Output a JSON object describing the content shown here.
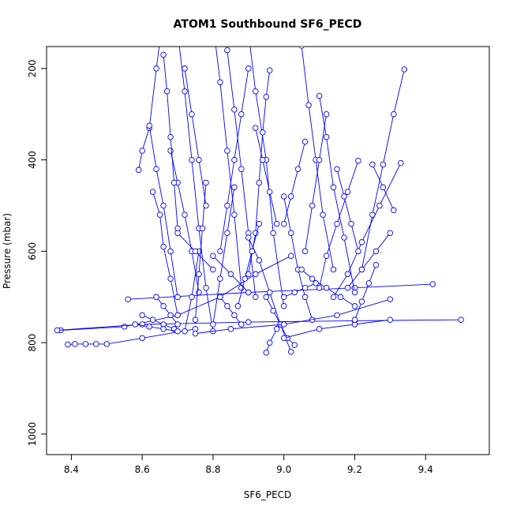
{
  "chart_data": {
    "type": "line",
    "title": "ATOM1 Southbound SF6_PECD",
    "xlabel": "SF6_PECD",
    "ylabel": "Pressure (mbar)",
    "xlim": [
      8.33,
      9.58
    ],
    "ylim": [
      1045,
      152
    ],
    "y_reversed": true,
    "grid": false,
    "legend": "none",
    "series_color": "#0000ff",
    "marker": "open-circle",
    "x_ticks": [
      8.4,
      8.6,
      8.8,
      9.0,
      9.2,
      9.4
    ],
    "x_tick_labels": [
      "8.4",
      "8.6",
      "8.8",
      "9.0",
      "9.2",
      "9.4"
    ],
    "y_ticks": [
      200,
      400,
      600,
      800,
      1000
    ],
    "y_tick_labels": [
      "200",
      "400",
      "600",
      "800",
      "1000"
    ],
    "series": [
      {
        "x": [
          8.66,
          8.64,
          8.62,
          8.6,
          8.59
        ],
        "y": [
          80,
          200,
          330,
          380,
          422
        ]
      },
      {
        "x": [
          8.37,
          8.55,
          8.7,
          8.82,
          8.92,
          9.02
        ],
        "y": [
          773,
          765,
          740,
          700,
          650,
          610
        ]
      },
      {
        "x": [
          8.39,
          8.41,
          8.44,
          8.47,
          8.5,
          8.6,
          8.75
        ],
        "y": [
          804,
          803,
          803,
          803,
          803,
          790,
          770
        ]
      },
      {
        "x": [
          8.36,
          8.6,
          8.9,
          9.2,
          9.5
        ],
        "y": [
          773,
          760,
          755,
          752,
          750
        ]
      },
      {
        "x": [
          8.56,
          8.9,
          9.2,
          9.42
        ],
        "y": [
          705,
          690,
          680,
          672
        ]
      },
      {
        "x": [
          8.7,
          8.72,
          8.74,
          8.76,
          8.78,
          8.8
        ],
        "y": [
          120,
          250,
          400,
          550,
          680,
          775
        ]
      },
      {
        "x": [
          8.68,
          8.7,
          8.72,
          8.74,
          8.76
        ],
        "y": [
          380,
          450,
          520,
          600,
          690
        ]
      },
      {
        "x": [
          8.63,
          8.65,
          8.66,
          8.68,
          8.7
        ],
        "y": [
          470,
          520,
          590,
          660,
          740
        ]
      },
      {
        "x": [
          8.62,
          8.64,
          8.66,
          8.68,
          8.7
        ],
        "y": [
          325,
          420,
          500,
          600,
          700
        ]
      },
      {
        "x": [
          8.8,
          8.82,
          8.84,
          8.86,
          8.88
        ],
        "y": [
          100,
          230,
          380,
          520,
          680
        ]
      },
      {
        "x": [
          8.84,
          8.86,
          8.88,
          8.9,
          8.92
        ],
        "y": [
          160,
          290,
          420,
          560,
          700
        ]
      },
      {
        "x": [
          8.9,
          8.92,
          8.95,
          8.97,
          9.0
        ],
        "y": [
          120,
          250,
          400,
          560,
          720
        ]
      },
      {
        "x": [
          8.96,
          8.95,
          8.94,
          8.93,
          8.92,
          8.9
        ],
        "y": [
          204,
          262,
          340,
          450,
          560,
          650
        ]
      },
      {
        "x": [
          9.05,
          9.07,
          9.09,
          9.11,
          9.14
        ],
        "y": [
          150,
          280,
          400,
          520,
          640
        ]
      },
      {
        "x": [
          9.1,
          9.12,
          9.14,
          9.17,
          9.2
        ],
        "y": [
          260,
          350,
          460,
          570,
          690
        ]
      },
      {
        "x": [
          9.34,
          9.31,
          9.28,
          9.25,
          9.22
        ],
        "y": [
          202,
          300,
          410,
          520,
          640
        ]
      },
      {
        "x": [
          9.33,
          9.27,
          9.22,
          9.18,
          9.14
        ],
        "y": [
          407,
          500,
          580,
          650,
          700
        ]
      },
      {
        "x": [
          9.21,
          9.18,
          9.15,
          9.12,
          9.1
        ],
        "y": [
          402,
          470,
          540,
          610,
          680
        ]
      },
      {
        "x": [
          9.0,
          9.02,
          9.04,
          9.06,
          9.08
        ],
        "y": [
          480,
          560,
          640,
          700,
          750
        ]
      },
      {
        "x": [
          8.9,
          8.93,
          8.96,
          8.99,
          9.02
        ],
        "y": [
          570,
          620,
          690,
          760,
          820
        ]
      },
      {
        "x": [
          8.95,
          8.97,
          8.99,
          9.01,
          9.03
        ],
        "y": [
          700,
          730,
          760,
          790,
          805
        ]
      },
      {
        "x": [
          8.98,
          8.96,
          8.95
        ],
        "y": [
          770,
          800,
          822
        ]
      },
      {
        "x": [
          9.0,
          9.1,
          9.2,
          9.3
        ],
        "y": [
          790,
          770,
          760,
          750
        ]
      },
      {
        "x": [
          8.75,
          8.85,
          9.0,
          9.15,
          9.3
        ],
        "y": [
          780,
          770,
          760,
          740,
          705
        ]
      },
      {
        "x": [
          8.76,
          8.74,
          8.72
        ],
        "y": [
          600,
          700,
          775
        ]
      },
      {
        "x": [
          8.78,
          8.77,
          8.76,
          8.75
        ],
        "y": [
          450,
          550,
          650,
          750
        ]
      },
      {
        "x": [
          8.86,
          8.84,
          8.82,
          8.8
        ],
        "y": [
          460,
          560,
          660,
          760
        ]
      },
      {
        "x": [
          8.92,
          8.94,
          8.96,
          8.98
        ],
        "y": [
          330,
          400,
          470,
          540
        ]
      },
      {
        "x": [
          9.06,
          9.04,
          9.02,
          9.0
        ],
        "y": [
          360,
          420,
          480,
          540
        ]
      },
      {
        "x": [
          9.15,
          9.17,
          9.19,
          9.21
        ],
        "y": [
          420,
          480,
          540,
          600
        ]
      },
      {
        "x": [
          9.26,
          9.24,
          9.22,
          9.2
        ],
        "y": [
          630,
          670,
          710,
          750
        ]
      },
      {
        "x": [
          8.64,
          8.66,
          8.68,
          8.7
        ],
        "y": [
          700,
          720,
          740,
          760
        ]
      },
      {
        "x": [
          8.6,
          8.63,
          8.66,
          8.69
        ],
        "y": [
          740,
          750,
          760,
          770
        ]
      },
      {
        "x": [
          8.58,
          8.62,
          8.66,
          8.7
        ],
        "y": [
          760,
          765,
          770,
          775
        ]
      },
      {
        "x": [
          8.9,
          8.88,
          8.86,
          8.84,
          8.82
        ],
        "y": [
          200,
          300,
          400,
          500,
          600
        ]
      },
      {
        "x": [
          8.72,
          8.74,
          8.76,
          8.78
        ],
        "y": [
          200,
          300,
          400,
          500
        ]
      },
      {
        "x": [
          8.66,
          8.67,
          8.68,
          8.69,
          8.7
        ],
        "y": [
          170,
          250,
          350,
          450,
          550
        ]
      },
      {
        "x": [
          9.12,
          9.1,
          9.08,
          9.06
        ],
        "y": [
          300,
          400,
          500,
          600
        ]
      },
      {
        "x": [
          9.05,
          9.08,
          9.12,
          9.16,
          9.2
        ],
        "y": [
          640,
          660,
          680,
          700,
          720
        ]
      },
      {
        "x": [
          9.3,
          9.26,
          9.22,
          9.18
        ],
        "y": [
          560,
          600,
          640,
          680
        ]
      },
      {
        "x": [
          8.93,
          8.91,
          8.89,
          8.87
        ],
        "y": [
          540,
          600,
          660,
          720
        ]
      },
      {
        "x": [
          8.82,
          8.84,
          8.86,
          8.88
        ],
        "y": [
          700,
          720,
          740,
          760
        ]
      },
      {
        "x": [
          8.8,
          8.85,
          8.9
        ],
        "y": [
          610,
          650,
          690
        ]
      },
      {
        "x": [
          9.0,
          9.03,
          9.06,
          9.09
        ],
        "y": [
          700,
          690,
          680,
          670
        ]
      },
      {
        "x": [
          8.7,
          8.75,
          8.8
        ],
        "y": [
          560,
          600,
          640
        ]
      },
      {
        "x": [
          9.25,
          9.28,
          9.31
        ],
        "y": [
          410,
          460,
          510
        ]
      }
    ]
  }
}
